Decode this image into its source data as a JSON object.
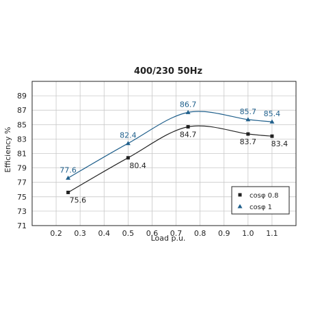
{
  "chart_data": {
    "type": "line",
    "title": "400/230 50Hz",
    "xlabel": "Load p.u.",
    "ylabel": "Efficiency %",
    "xlim": [
      0.1,
      1.2
    ],
    "ylim": [
      71,
      91
    ],
    "xticks": [
      0.2,
      0.3,
      0.4,
      0.5,
      0.6,
      0.7,
      0.8,
      0.9,
      1.0,
      1.1
    ],
    "xtick_labels": [
      "0.2",
      "0.3",
      "0.4",
      "0.5",
      "0.6",
      "0.7",
      "0.8",
      "0.9",
      "1.0",
      "1.1"
    ],
    "yticks": [
      71,
      73,
      75,
      77,
      79,
      81,
      83,
      85,
      87,
      89
    ],
    "grid": true,
    "legend_position": "bottom-right",
    "series": [
      {
        "name": "cosφ 0.8",
        "marker": "square",
        "color": "#222222",
        "x": [
          0.25,
          0.5,
          0.75,
          1.0,
          1.1
        ],
        "y": [
          75.6,
          80.4,
          84.7,
          83.7,
          83.4
        ],
        "labels": [
          "75.6",
          "80.4",
          "84.7",
          "83.7",
          "83.4"
        ]
      },
      {
        "name": "cosφ 1",
        "marker": "triangle",
        "color": "#1f5f8b",
        "x": [
          0.25,
          0.5,
          0.75,
          1.0,
          1.1
        ],
        "y": [
          77.6,
          82.4,
          86.7,
          85.7,
          85.4
        ],
        "labels": [
          "77.6",
          "82.4",
          "86.7",
          "85.7",
          "85.4"
        ]
      }
    ]
  }
}
